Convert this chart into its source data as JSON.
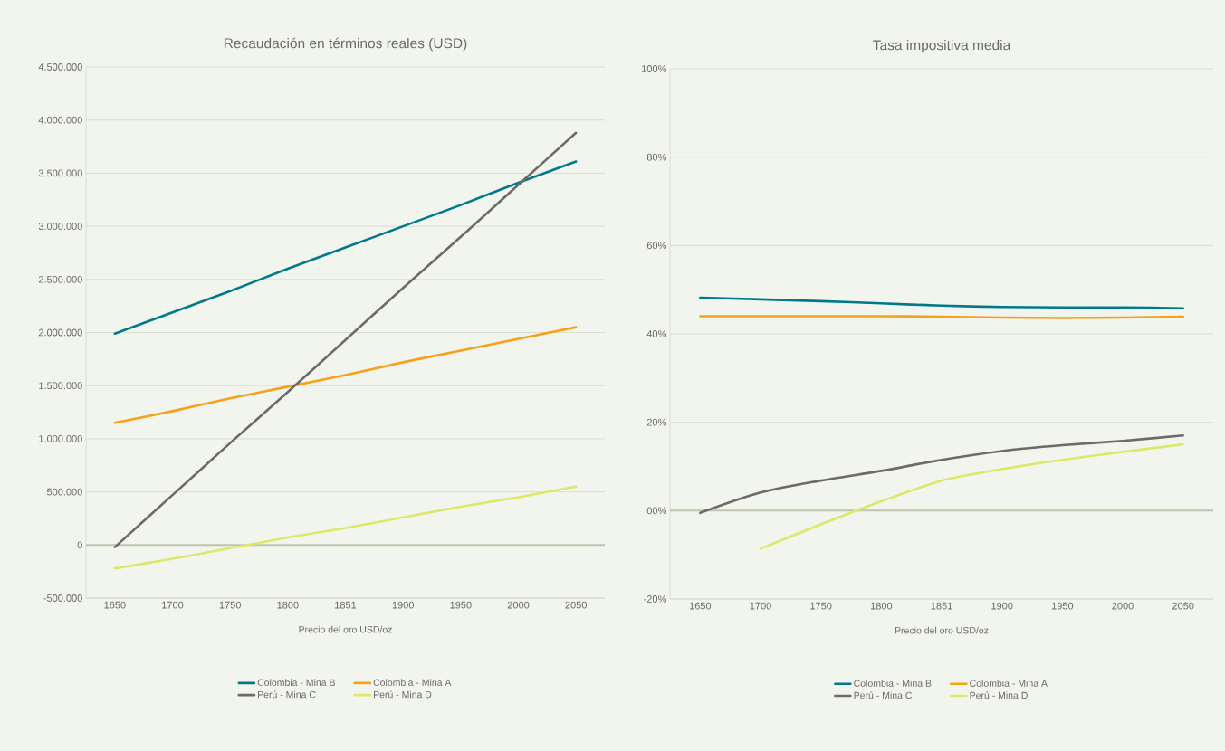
{
  "chart_data": [
    {
      "type": "line",
      "title": "Recaudación en términos reales (USD)",
      "xlabel": "Precio del oro USD/oz",
      "categories": [
        "1650",
        "1700",
        "1750",
        "1800",
        "1851",
        "1900",
        "1950",
        "2000",
        "2050"
      ],
      "series": [
        {
          "name": "Colombia - Mina B",
          "color": "#00798c",
          "values": [
            1990000,
            2190000,
            2390000,
            2600000,
            2800000,
            3000000,
            3200000,
            3410000,
            3610000
          ]
        },
        {
          "name": "Colombia - Mina A",
          "color": "#f7a11a",
          "values": [
            1150000,
            1260000,
            1380000,
            1490000,
            1600000,
            1720000,
            1830000,
            1940000,
            2050000
          ]
        },
        {
          "name": "Perú - Mina C",
          "color": "#6d6a67",
          "values": [
            -20000,
            470000,
            960000,
            1440000,
            1930000,
            2420000,
            2900000,
            3390000,
            3880000
          ]
        },
        {
          "name": "Perú - Mina D",
          "color": "#dde86a",
          "values": [
            -220000,
            -130000,
            -30000,
            70000,
            160000,
            260000,
            360000,
            450000,
            550000
          ]
        }
      ],
      "ylim": [
        -500000,
        4500000
      ],
      "yticks": [
        {
          "value": -500000,
          "label": "-500.000"
        },
        0,
        {
          "value": 500000,
          "label": "500.000"
        },
        {
          "value": 1000000,
          "label": "1.000.000"
        },
        {
          "value": 1500000,
          "label": "1.500.000"
        },
        {
          "value": 2000000,
          "label": "2.000.000"
        },
        {
          "value": 2500000,
          "label": "2.500.000"
        },
        {
          "value": 3000000,
          "label": "3.000.000"
        },
        {
          "value": 3500000,
          "label": "3.500.000"
        },
        {
          "value": 4000000,
          "label": "4.000.000"
        },
        {
          "value": 4500000,
          "label": "4.500.000"
        }
      ],
      "grid": "y",
      "legend": "bottom"
    },
    {
      "type": "line",
      "title": "Tasa impositiva media",
      "xlabel": "Precio del oro USD/oz",
      "categories": [
        "1650",
        "1700",
        "1750",
        "1800",
        "1851",
        "1900",
        "1950",
        "2000",
        "2050"
      ],
      "series": [
        {
          "name": "Colombia - Mina B",
          "color": "#00798c",
          "values": [
            48.2,
            47.8,
            47.4,
            46.9,
            46.4,
            46.1,
            46.0,
            46.0,
            45.8
          ]
        },
        {
          "name": "Colombia - Mina A",
          "color": "#f7a11a",
          "values": [
            44.0,
            44.0,
            44.0,
            44.0,
            43.9,
            43.7,
            43.6,
            43.7,
            43.9
          ]
        },
        {
          "name": "Perú - Mina C",
          "color": "#6d6a67",
          "values": [
            -0.5,
            4.1,
            6.8,
            9.0,
            11.5,
            13.5,
            14.8,
            15.8,
            17.0
          ]
        },
        {
          "name": "Perú - Mina D",
          "color": "#dde86a",
          "values": [
            null,
            -8.6,
            -3.1,
            2.1,
            6.8,
            9.4,
            11.5,
            13.3,
            15.0
          ]
        }
      ],
      "ylim": [
        -20,
        100
      ],
      "yticks": [
        {
          "value": -20,
          "label": "-20%"
        },
        {
          "value": 0,
          "label": "00%"
        },
        {
          "value": 20,
          "label": "20%"
        },
        {
          "value": 40,
          "label": "40%"
        },
        {
          "value": 60,
          "label": "60%"
        },
        {
          "value": 80,
          "label": "80%"
        },
        {
          "value": 100,
          "label": "100%"
        }
      ],
      "grid": "y",
      "legend": "bottom"
    }
  ]
}
